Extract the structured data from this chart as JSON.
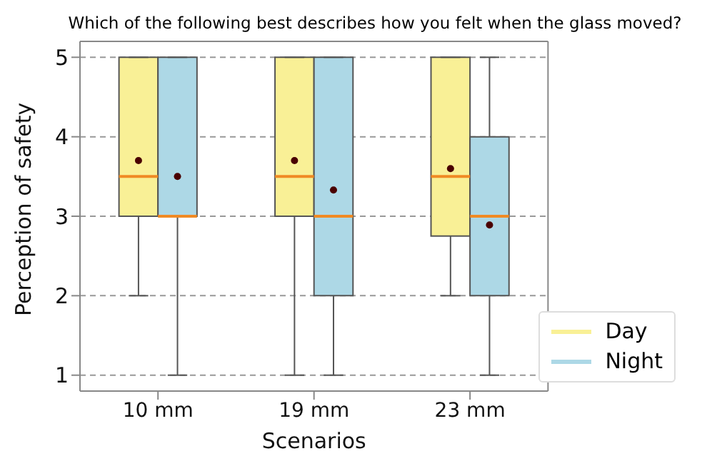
{
  "chart_data": {
    "type": "box",
    "title": "Which of the following best describes how you felt when the glass moved?",
    "xlabel": "Scenarios",
    "ylabel": "Perception of safety",
    "categories": [
      "10 mm",
      "19 mm",
      "23 mm"
    ],
    "series": [
      {
        "name": "Day",
        "color": "#f9f096",
        "boxes": [
          {
            "low": 2,
            "q1": 3,
            "median": 3.5,
            "q3": 5,
            "high": 5,
            "mean": 3.7
          },
          {
            "low": 1,
            "q1": 3,
            "median": 3.5,
            "q3": 5,
            "high": 5,
            "mean": 3.7
          },
          {
            "low": 2,
            "q1": 2.75,
            "median": 3.5,
            "q3": 5,
            "high": 5,
            "mean": 3.6
          }
        ]
      },
      {
        "name": "Night",
        "color": "#add8e6",
        "boxes": [
          {
            "low": 1,
            "q1": 3,
            "median": 3,
            "q3": 5,
            "high": 5,
            "mean": 3.5
          },
          {
            "low": 1,
            "q1": 2,
            "median": 3,
            "q3": 5,
            "high": 5,
            "mean": 3.33
          },
          {
            "low": 1,
            "q1": 2,
            "median": 3,
            "q3": 4,
            "high": 5,
            "mean": 2.89
          }
        ]
      }
    ],
    "ylim": [
      0.8,
      5.2
    ],
    "yticks": [
      1,
      2,
      3,
      4,
      5
    ],
    "grid": "y",
    "legend": "bottom right"
  }
}
